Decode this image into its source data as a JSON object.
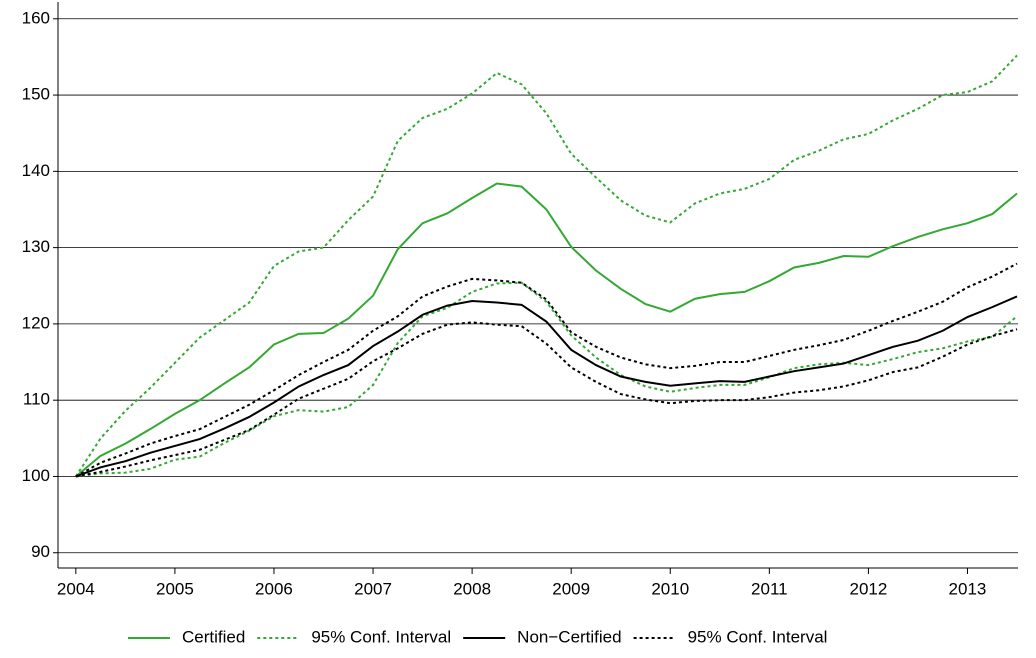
{
  "chart_data": {
    "type": "line",
    "x": [
      2004,
      2004.25,
      2004.5,
      2004.75,
      2005,
      2005.25,
      2005.5,
      2005.75,
      2006,
      2006.25,
      2006.5,
      2006.75,
      2007,
      2007.25,
      2007.5,
      2007.75,
      2008,
      2008.25,
      2008.5,
      2008.75,
      2009,
      2009.25,
      2009.5,
      2009.75,
      2010,
      2010.25,
      2010.5,
      2010.75,
      2011,
      2011.25,
      2011.5,
      2011.75,
      2012,
      2012.25,
      2012.5,
      2012.75,
      2013,
      2013.25,
      2013.5
    ],
    "series": [
      {
        "name": "Certified",
        "color": "#33a833",
        "linestyle": "solid",
        "values": [
          100,
          102.7,
          104.3,
          106.2,
          108.2,
          110.0,
          112.2,
          114.3,
          117.3,
          118.7,
          118.8,
          120.7,
          123.7,
          129.8,
          133.2,
          134.5,
          136.5,
          138.4,
          138.0,
          135.0,
          130.1,
          127.0,
          124.6,
          122.6,
          121.6,
          123.3,
          123.9,
          124.2,
          125.6,
          127.4,
          128.0,
          128.9,
          128.8,
          130.2,
          131.4,
          132.4,
          133.2,
          134.4,
          137.1
        ]
      },
      {
        "name": "95% Conf. Interval",
        "color": "#33a833",
        "linestyle": "dotted",
        "values": [
          100,
          105.0,
          108.6,
          111.6,
          114.9,
          118.2,
          120.5,
          122.8,
          127.6,
          129.5,
          130.0,
          133.6,
          136.7,
          144.0,
          147.0,
          148.2,
          150.2,
          152.9,
          151.4,
          147.6,
          142.3,
          139.2,
          136.2,
          134.2,
          133.3,
          135.8,
          137.1,
          137.7,
          139.0,
          141.5,
          142.7,
          144.2,
          144.9,
          146.7,
          148.2,
          150.0,
          150.4,
          151.8,
          155.2
        ]
      },
      {
        "name": "95% Conf. Interval",
        "color": "#33a833",
        "linestyle": "dotted",
        "legend": false,
        "values": [
          100,
          100.4,
          100.5,
          101.0,
          102.2,
          102.6,
          104.4,
          106.0,
          107.9,
          108.7,
          108.5,
          109.1,
          112.0,
          117.5,
          121.0,
          122.1,
          124.2,
          125.3,
          125.4,
          122.9,
          118.5,
          115.6,
          113.3,
          111.8,
          111.1,
          111.6,
          112.0,
          112.0,
          113.0,
          114.2,
          114.7,
          114.9,
          114.6,
          115.4,
          116.3,
          116.8,
          117.7,
          118.3,
          121.0
        ]
      },
      {
        "name": "Non−Certified",
        "color": "#000000",
        "linestyle": "solid",
        "values": [
          100,
          101.2,
          102.0,
          103.1,
          104.0,
          104.9,
          106.3,
          107.8,
          109.7,
          111.8,
          113.3,
          114.6,
          117.1,
          119.0,
          121.2,
          122.4,
          123.0,
          122.8,
          122.5,
          120.3,
          116.6,
          114.6,
          113.1,
          112.4,
          111.9,
          112.2,
          112.5,
          112.4,
          113.1,
          113.8,
          114.3,
          114.8,
          115.9,
          117.0,
          117.8,
          119.1,
          120.9,
          122.2,
          123.6
        ]
      },
      {
        "name": "95% Conf. Interval",
        "color": "#000000",
        "linestyle": "dotted",
        "values": [
          100,
          101.8,
          103.0,
          104.3,
          105.3,
          106.2,
          107.8,
          109.4,
          111.3,
          113.3,
          115.0,
          116.6,
          119.1,
          121.0,
          123.6,
          124.9,
          125.9,
          125.7,
          125.4,
          123.2,
          118.9,
          117.0,
          115.6,
          114.7,
          114.2,
          114.5,
          115.0,
          115.0,
          115.8,
          116.6,
          117.2,
          117.9,
          119.1,
          120.4,
          121.6,
          122.9,
          124.8,
          126.2,
          127.9
        ]
      },
      {
        "name": "95% Conf. Interval",
        "color": "#000000",
        "linestyle": "dotted",
        "legend": false,
        "values": [
          100,
          100.6,
          101.3,
          102.1,
          102.8,
          103.5,
          104.8,
          106.1,
          108.1,
          110.2,
          111.5,
          112.8,
          115.1,
          116.8,
          118.7,
          119.9,
          120.2,
          119.9,
          119.7,
          117.4,
          114.3,
          112.4,
          110.8,
          110.1,
          109.6,
          109.9,
          110.0,
          110.0,
          110.4,
          111.0,
          111.3,
          111.8,
          112.6,
          113.7,
          114.3,
          115.7,
          117.3,
          118.4,
          119.3
        ]
      }
    ],
    "xlim": [
      2003.82,
      2013.51
    ],
    "xticks": [
      2004,
      2005,
      2006,
      2007,
      2008,
      2009,
      2010,
      2011,
      2012,
      2013
    ],
    "ylim": [
      88,
      162.2
    ],
    "yticks": [
      90,
      100,
      110,
      120,
      130,
      140,
      150,
      160
    ],
    "grid": true,
    "legend": "bottom"
  }
}
